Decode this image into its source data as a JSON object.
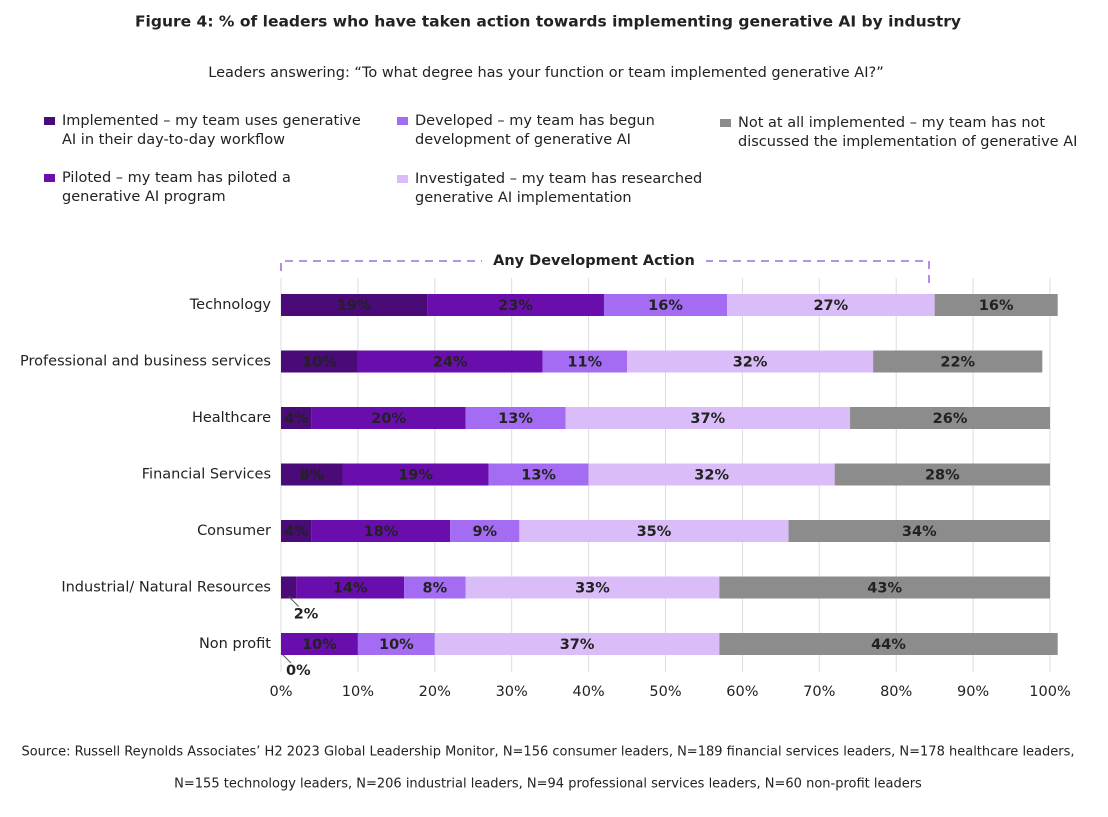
{
  "chart_data": {
    "type": "stacked-bar-horizontal",
    "title": "Figure 4: % of leaders who have taken action towards implementing generative AI by industry",
    "subtitle": "Leaders answering: “To what degree has your function or team implemented generative AI?”",
    "annotation": "Any Development Action",
    "categories": [
      "Technology",
      "Professional and business services",
      "Healthcare",
      "Financial Services",
      "Consumer",
      "Industrial/ Natural Resources",
      "Non profit"
    ],
    "series": [
      {
        "name": "Implemented – my team uses generative AI in their day-to-day workflow",
        "color": "#4a0a78",
        "label_color": "#ffffff",
        "values": [
          19,
          10,
          4,
          8,
          4,
          2,
          0
        ],
        "value_labels": [
          "19%",
          "10%",
          "4%",
          "8%",
          "4%",
          "2%",
          "0%"
        ]
      },
      {
        "name": "Piloted – my team has piloted a generative AI program",
        "color": "#6a0dad",
        "label_color": "#ffffff",
        "values": [
          23,
          24,
          20,
          19,
          18,
          14,
          10
        ],
        "value_labels": [
          "23%",
          "24%",
          "20%",
          "19%",
          "18%",
          "14%",
          "10%"
        ]
      },
      {
        "name": "Developed – my team has begun development of generative AI",
        "color": "#a46cf2",
        "label_color": "#ffffff",
        "values": [
          16,
          11,
          13,
          13,
          9,
          8,
          10
        ],
        "value_labels": [
          "16%",
          "11%",
          "13%",
          "13%",
          "9%",
          "8%",
          "10%"
        ]
      },
      {
        "name": "Investigated – my team has researched generative AI implementation",
        "color": "#dabdf8",
        "label_color": "#4a0a78",
        "values": [
          27,
          32,
          37,
          32,
          35,
          33,
          37
        ],
        "value_labels": [
          "27%",
          "32%",
          "37%",
          "32%",
          "35%",
          "33%",
          "37%"
        ]
      },
      {
        "name": "Not at all implemented – my team has not discussed the implementation of generative AI",
        "color": "#8c8c8c",
        "label_color": "#ffffff",
        "values": [
          16,
          22,
          26,
          28,
          34,
          43,
          44
        ],
        "value_labels": [
          "16%",
          "22%",
          "26%",
          "28%",
          "34%",
          "43%",
          "44%"
        ]
      }
    ],
    "xlim": [
      0,
      100
    ],
    "xticks": [
      {
        "value": 0,
        "label": "0%"
      },
      {
        "value": 10,
        "label": "10%"
      },
      {
        "value": 20,
        "label": "20%"
      },
      {
        "value": 30,
        "label": "30%"
      },
      {
        "value": 40,
        "label": "40%"
      },
      {
        "value": 50,
        "label": "50%"
      },
      {
        "value": 60,
        "label": "60%"
      },
      {
        "value": 70,
        "label": "70%"
      },
      {
        "value": 80,
        "label": "80%"
      },
      {
        "value": 90,
        "label": "90%"
      },
      {
        "value": 100,
        "label": "100%"
      }
    ],
    "grid": true,
    "notes": [
      "Source: Russell Reynolds Associates’ H2 2023 Global Leadership Monitor, N=156 consumer leaders, N=189 financial services leaders, N=178 healthcare leaders,",
      "N=155 technology leaders, N=206 industrial leaders, N=94 professional services leaders, N=60 non-profit leaders"
    ]
  }
}
